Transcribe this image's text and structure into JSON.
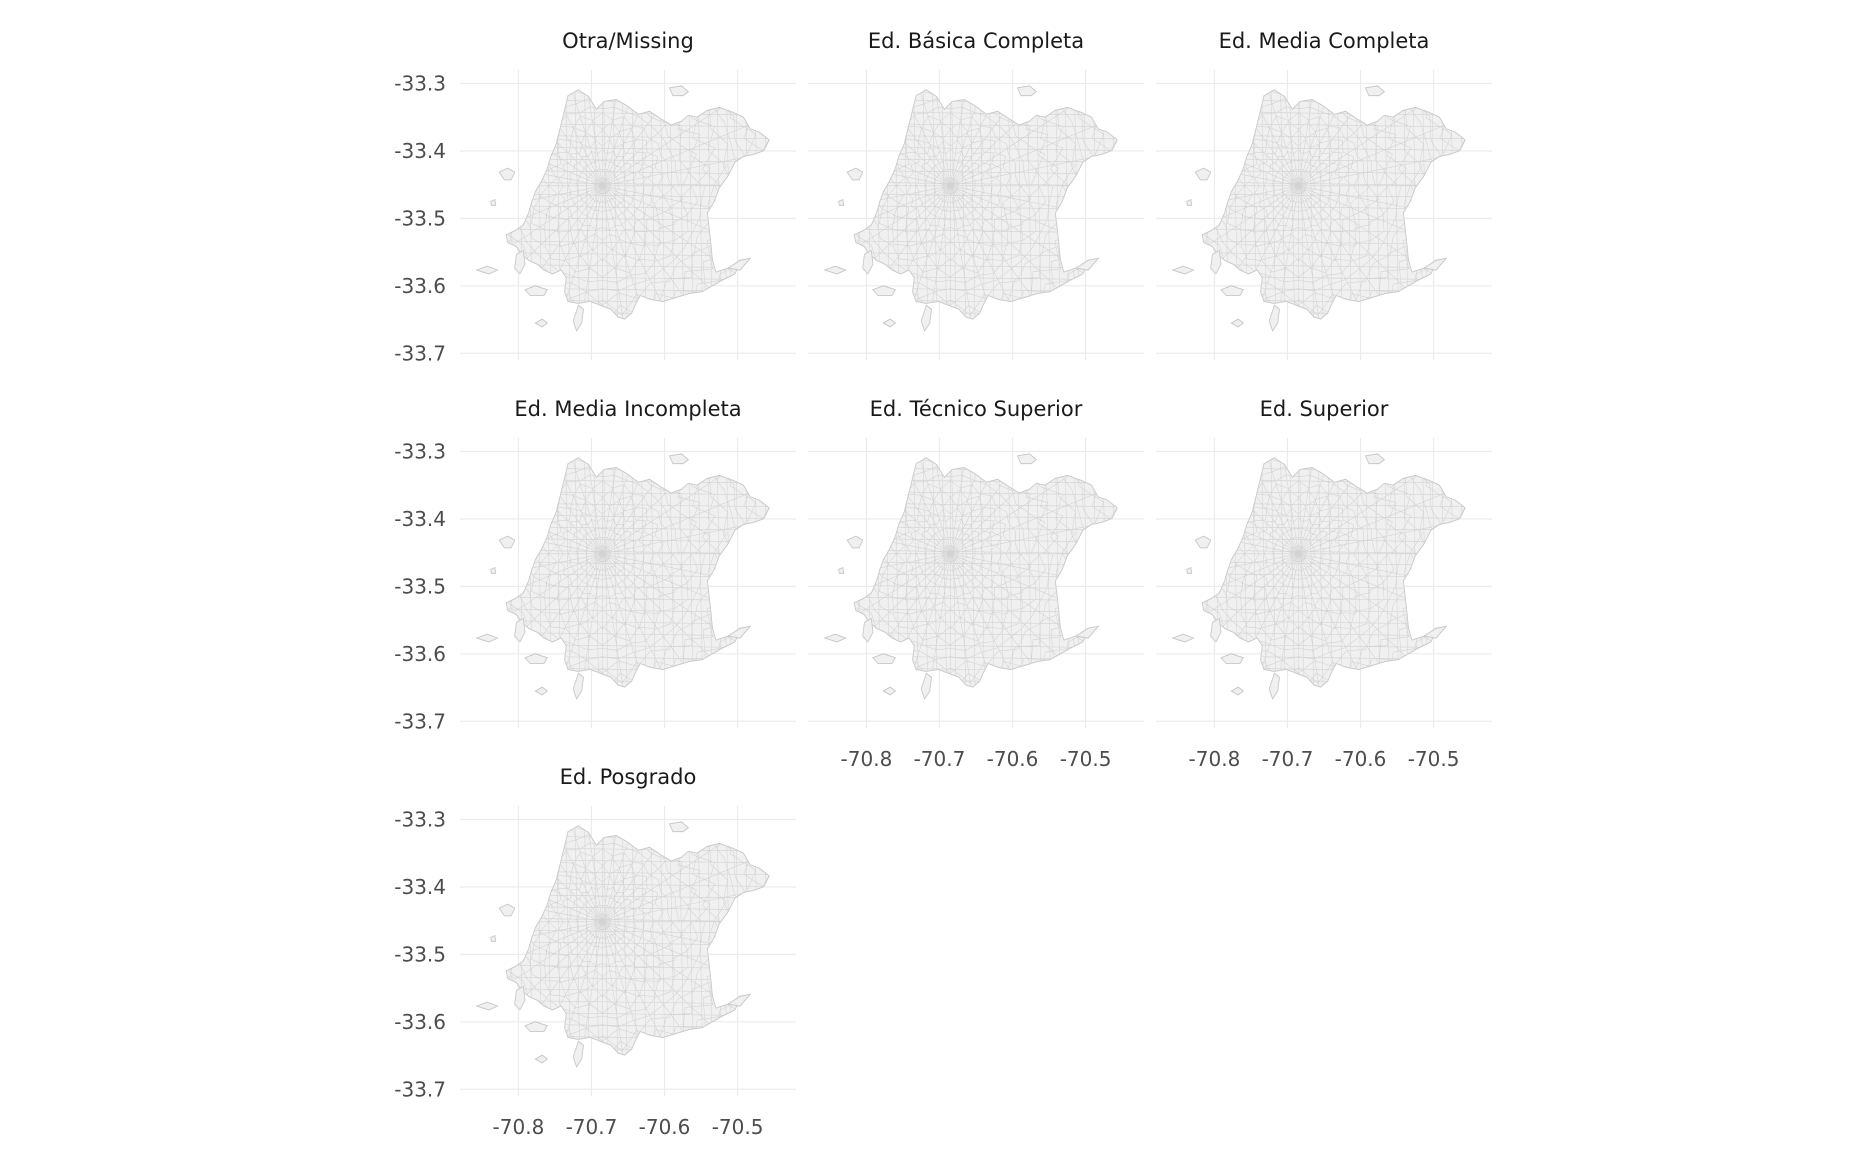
{
  "map": {
    "type": "choropleth-facets",
    "fill_color": "#f0f0f0",
    "border_color": "#c8c8c8",
    "grid_color": "#ebebeb",
    "xlim": [
      -70.88,
      -70.42
    ],
    "ylim": [
      -33.71,
      -33.28
    ],
    "x_ticks": [
      {
        "value": -70.8,
        "label": "-70.8"
      },
      {
        "value": -70.7,
        "label": "-70.7"
      },
      {
        "value": -70.6,
        "label": "-70.6"
      },
      {
        "value": -70.5,
        "label": "-70.5"
      }
    ],
    "y_ticks": [
      {
        "value": -33.3,
        "label": "-33.3"
      },
      {
        "value": -33.4,
        "label": "-33.4"
      },
      {
        "value": -33.5,
        "label": "-33.5"
      },
      {
        "value": -33.6,
        "label": "-33.6"
      },
      {
        "value": -33.7,
        "label": "-33.7"
      }
    ],
    "panels": [
      {
        "title": "Otra/Missing",
        "show_y": true,
        "show_x": false
      },
      {
        "title": "Ed. Básica Completa",
        "show_y": false,
        "show_x": false
      },
      {
        "title": "Ed. Media Completa",
        "show_y": false,
        "show_x": false
      },
      {
        "title": "Ed. Media Incompleta",
        "show_y": true,
        "show_x": false
      },
      {
        "title": "Ed. Técnico Superior",
        "show_y": false,
        "show_x": true
      },
      {
        "title": "Ed. Superior",
        "show_y": false,
        "show_x": true
      },
      {
        "title": "Ed. Posgrado",
        "show_y": true,
        "show_x": true
      }
    ]
  }
}
